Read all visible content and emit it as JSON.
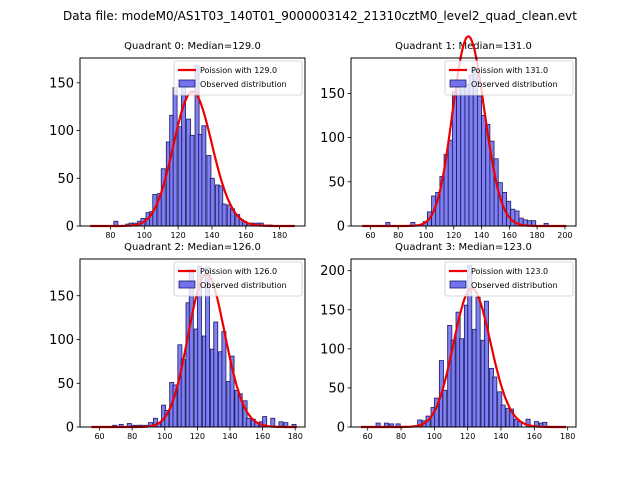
{
  "suptitle": "Data file: modeM0/AS1T03_140T01_9000003142_21310cztM0_level2_quad_clean.evt",
  "colors": {
    "bar_fill": "#7272ee",
    "bar_edge": "#1a1a66",
    "poisson": "#ee0000"
  },
  "chart_data": [
    {
      "type": "bar",
      "title": "Quadrant 0: Median=129.0",
      "median": 129.0,
      "legend": [
        "Poission with 129.0",
        "Observed distribution"
      ],
      "legend_position": "top-right",
      "xlim": [
        62,
        195
      ],
      "ylim": [
        0,
        176
      ],
      "xticks": [
        80,
        100,
        120,
        140,
        160,
        180
      ],
      "yticks": [
        0,
        50,
        100,
        150
      ],
      "bin_width": 2.4,
      "bin_starts": [
        82,
        89,
        91,
        93,
        96,
        98,
        101,
        103,
        105,
        108,
        110,
        113,
        115,
        117,
        120,
        122,
        125,
        127,
        130,
        132,
        134,
        137,
        139,
        142,
        144,
        146,
        149,
        151,
        154,
        156,
        158,
        161,
        163,
        166,
        168,
        170,
        173
      ],
      "values": [
        5,
        2,
        3,
        3,
        5,
        8,
        14,
        15,
        33,
        34,
        60,
        88,
        116,
        145,
        104,
        150,
        112,
        95,
        168,
        96,
        105,
        74,
        50,
        43,
        42,
        23,
        22,
        18,
        12,
        7,
        5,
        3,
        3,
        3,
        3,
        1,
        1
      ],
      "poisson_lambda": 129.0,
      "poisson_x_range": [
        68,
        189
      ],
      "poisson_scale": 1
    },
    {
      "type": "bar",
      "title": "Quadrant 1: Median=131.0",
      "median": 131.0,
      "legend": [
        "Poission with 131.0",
        "Observed distribution"
      ],
      "legend_position": "top-right",
      "xlim": [
        46,
        208
      ],
      "ylim": [
        0,
        190
      ],
      "xticks": [
        60,
        80,
        100,
        120,
        140,
        160,
        180,
        200
      ],
      "yticks": [
        0,
        50,
        100,
        150
      ],
      "bin_width": 3.0,
      "bin_starts": [
        71,
        89,
        98,
        101,
        104,
        107,
        110,
        113,
        116,
        119,
        122,
        125,
        128,
        131,
        134,
        137,
        140,
        143,
        146,
        149,
        152,
        155,
        158,
        161,
        164,
        167,
        170,
        173,
        176,
        185
      ],
      "values": [
        4,
        4,
        5,
        16,
        34,
        38,
        56,
        81,
        97,
        152,
        157,
        155,
        160,
        171,
        180,
        147,
        125,
        115,
        96,
        76,
        49,
        38,
        28,
        19,
        17,
        9,
        7,
        6,
        6,
        3
      ],
      "poisson_lambda": 131.0,
      "poisson_x_range": [
        54,
        201
      ],
      "poisson_scale": 1
    },
    {
      "type": "bar",
      "title": "Quadrant 2: Median=126.0",
      "median": 126.0,
      "legend": [
        "Poission with 126.0",
        "Observed distribution"
      ],
      "legend_position": "top-right",
      "xlim": [
        48,
        186
      ],
      "ylim": [
        0,
        192
      ],
      "xticks": [
        60,
        80,
        100,
        120,
        140,
        160,
        180
      ],
      "yticks": [
        0,
        50,
        100,
        150
      ],
      "bin_width": 2.5,
      "bin_starts": [
        68,
        72,
        77,
        80,
        83,
        85,
        88,
        90,
        93,
        95,
        98,
        100,
        103,
        105,
        108,
        110,
        113,
        115,
        118,
        120,
        123,
        125,
        128,
        130,
        133,
        135,
        138,
        140,
        143,
        145,
        148,
        150,
        153,
        155,
        158,
        160,
        165,
        170,
        173,
        178
      ],
      "values": [
        2,
        3,
        4,
        2,
        2,
        2,
        2,
        5,
        10,
        5,
        25,
        19,
        51,
        48,
        94,
        77,
        142,
        180,
        112,
        184,
        104,
        183,
        89,
        120,
        86,
        109,
        52,
        81,
        42,
        38,
        30,
        10,
        9,
        5,
        6,
        12,
        10,
        6,
        5,
        3
      ],
      "poisson_lambda": 126.0,
      "poisson_x_range": [
        55,
        181
      ],
      "poisson_scale": 1
    },
    {
      "type": "bar",
      "title": "Quadrant 3: Median=123.0",
      "median": 123.0,
      "legend": [
        "Poission with 123.0",
        "Observed distribution"
      ],
      "legend_position": "top-right",
      "xlim": [
        50,
        185
      ],
      "ylim": [
        0,
        215
      ],
      "xticks": [
        60,
        80,
        100,
        120,
        140,
        160,
        180
      ],
      "yticks": [
        0,
        50,
        100,
        150,
        200
      ],
      "bin_width": 2.5,
      "bin_starts": [
        65,
        70,
        73,
        77,
        90,
        93,
        95,
        98,
        100,
        103,
        105,
        108,
        110,
        113,
        115,
        118,
        120,
        123,
        125,
        128,
        130,
        133,
        135,
        138,
        140,
        143,
        145,
        148,
        150,
        155,
        160,
        163,
        165
      ],
      "values": [
        5,
        5,
        4,
        4,
        9,
        8,
        14,
        25,
        37,
        85,
        47,
        130,
        111,
        147,
        113,
        156,
        207,
        125,
        166,
        111,
        161,
        75,
        64,
        45,
        28,
        24,
        23,
        10,
        7,
        10,
        7,
        5,
        6
      ],
      "poisson_lambda": 123.0,
      "poisson_x_range": [
        56,
        179
      ],
      "poisson_scale": 1
    }
  ]
}
